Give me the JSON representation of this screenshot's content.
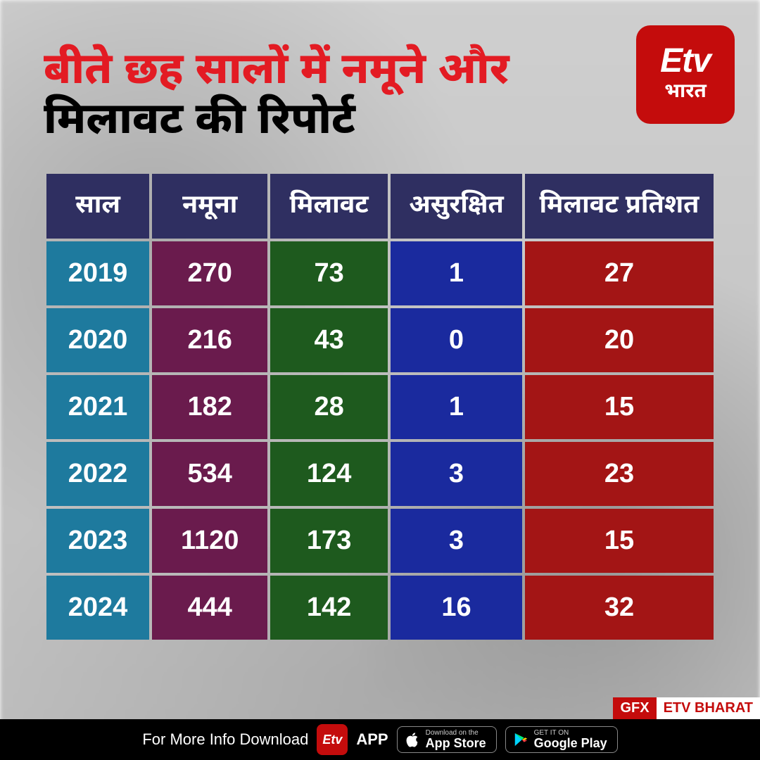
{
  "colors": {
    "logo_bg": "#c40c0c",
    "headline_line1": "#e31b23",
    "headline_line2": "#000000",
    "header_bg": "#2f2f61",
    "col_year_bg": "#1e7a9e",
    "col_sample_bg": "#6a1b4d",
    "col_adult_bg": "#1e5a1e",
    "col_unsafe_bg": "#1a2a9e",
    "col_pct_bg": "#a31515",
    "footer_bg": "#000000",
    "gfx_bg": "#c40c0c",
    "gfx2_bg": "#ffffff",
    "gfx2_fg": "#c40c0c"
  },
  "logo": {
    "top": "Etv",
    "bottom": "भारत"
  },
  "headline": {
    "line1": "बीते छह सालों में नमूने और",
    "line2": "मिलावट की रिपोर्ट"
  },
  "table": {
    "columns": [
      "साल",
      "नमूना",
      "मिलावट",
      "असुरक्षित",
      "मिलावट प्रतिशत"
    ],
    "col_widths": [
      "150px",
      "170px",
      "170px",
      "190px",
      "270px"
    ],
    "rows": [
      [
        "2019",
        "270",
        "73",
        "1",
        "27"
      ],
      [
        "2020",
        "216",
        "43",
        "0",
        "20"
      ],
      [
        "2021",
        "182",
        "28",
        "1",
        "15"
      ],
      [
        "2022",
        "534",
        "124",
        "3",
        "23"
      ],
      [
        "2023",
        "1120",
        "173",
        "3",
        "15"
      ],
      [
        "2024",
        "444",
        "142",
        "16",
        "32"
      ]
    ]
  },
  "footer": {
    "lead": "For More Info Download",
    "app_word": "APP",
    "appstore_small": "Download on the",
    "appstore_big": "App Store",
    "play_small": "GET IT ON",
    "play_big": "Google Play"
  },
  "gfx": {
    "a": "GFX",
    "b": "ETV BHARAT"
  }
}
